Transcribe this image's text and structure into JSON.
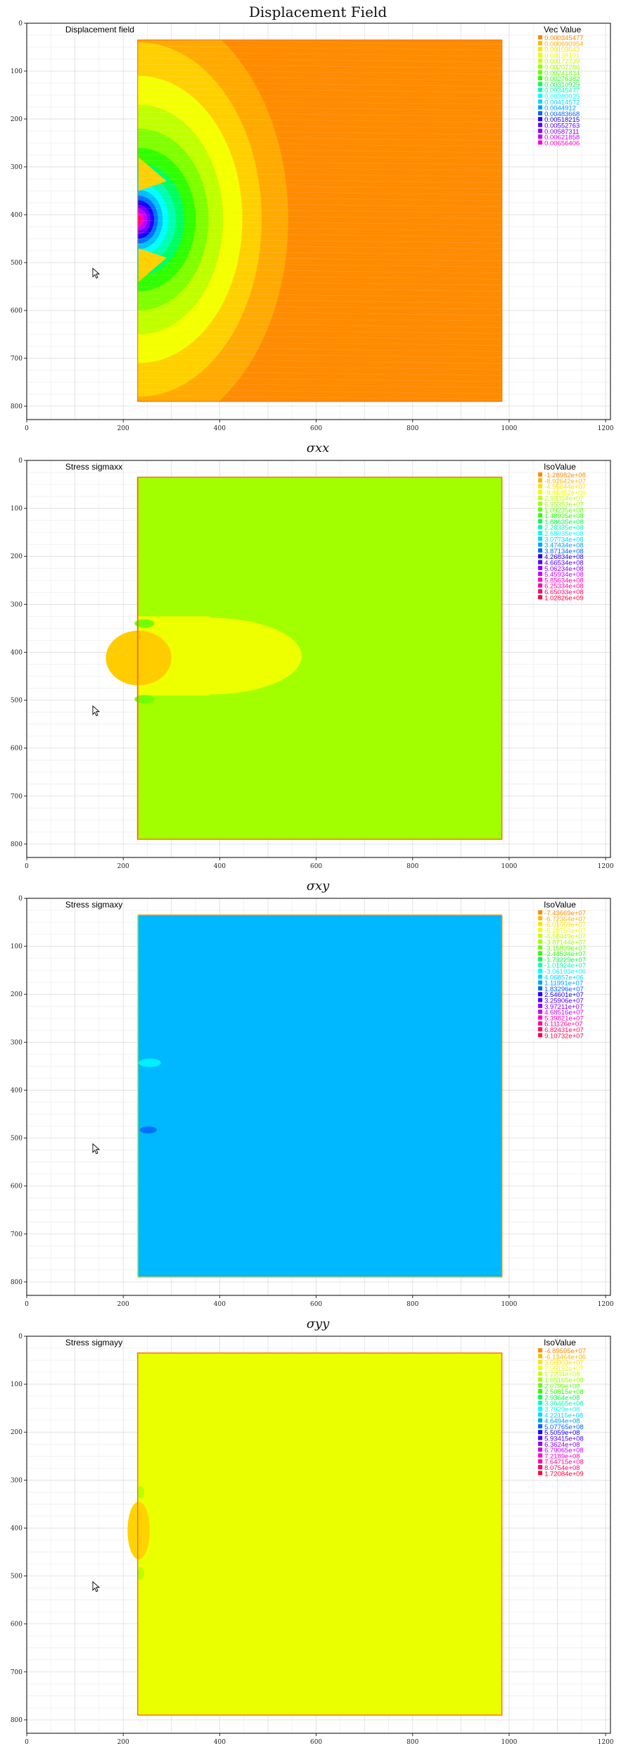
{
  "figure": {
    "title": "Displacement Field"
  },
  "chart_data": [
    {
      "type": "heatmap",
      "title": "Displacement Field",
      "inner_title": "Displacement field",
      "legend_title": "Vec Value",
      "legend_values": [
        "0.000345477",
        "0.000690954",
        "0.00103643",
        "0.00138191",
        "0.00172739",
        "0.00207286",
        "0.00241834",
        "0.00276382",
        "0.00310929",
        "0.00345477",
        "0.00380025",
        "0.00414572",
        "0.0044912",
        "0.00483668",
        "0.00518215",
        "0.00552763",
        "0.00587311",
        "0.00621858",
        "0.00656406"
      ],
      "legend_colors": [
        "#ff8a00",
        "#ffb700",
        "#ffe100",
        "#eeff00",
        "#c8ff00",
        "#9cff00",
        "#63ff00",
        "#2bff00",
        "#00ff4a",
        "#00ffb0",
        "#00ffff",
        "#00d8ff",
        "#00a2ff",
        "#0064ff",
        "#1c00ff",
        "#5200ff",
        "#8c00ff",
        "#c600ff",
        "#ff00c8"
      ],
      "xticks": [
        0,
        200,
        400,
        600,
        800,
        1000,
        1200
      ],
      "yticks": [
        0,
        100,
        200,
        300,
        400,
        500,
        600,
        700,
        800
      ],
      "xlim": [
        0,
        1210
      ],
      "ylim": [
        0,
        828
      ],
      "field": "displacement magnitude",
      "max_location": [
        235,
        410
      ]
    },
    {
      "type": "heatmap",
      "title": "σxx",
      "inner_title": "Stress sigmaxx",
      "legend_title": "IsoValue",
      "legend_values": [
        "-1.28982e+08",
        "-8.92642e+07",
        "-4.95644e+07",
        "-9.86452e+06",
        "2.98354e+07",
        "6.95353e+07",
        "1.09235e+08",
        "1.48935e+08",
        "1.88635e+08",
        "2.28335e+08",
        "2.68035e+08",
        "3.07734e+08",
        "3.47434e+08",
        "3.87134e+08",
        "4.26834e+08",
        "4.66534e+08",
        "5.06234e+08",
        "5.45934e+08",
        "5.85634e+08",
        "6.25334e+08",
        "6.65033e+08",
        "1.02826e+09"
      ],
      "legend_colors": [
        "#ff8a00",
        "#ffb700",
        "#ffe100",
        "#eeff00",
        "#c8ff00",
        "#9cff00",
        "#63ff00",
        "#2bff00",
        "#00ff4a",
        "#00ffb0",
        "#00ffff",
        "#00d8ff",
        "#00a2ff",
        "#0064ff",
        "#1c00ff",
        "#5200ff",
        "#8c00ff",
        "#c600ff",
        "#ff00c8",
        "#ff00a0",
        "#ff0070",
        "#ff0040"
      ],
      "xticks": [
        0,
        200,
        400,
        600,
        800,
        1000,
        1200
      ],
      "yticks": [
        0,
        100,
        200,
        300,
        400,
        500,
        600,
        700,
        800
      ],
      "xlim": [
        0,
        1210
      ],
      "ylim": [
        0,
        828
      ]
    },
    {
      "type": "heatmap",
      "title": "σxy",
      "inner_title": "Stress sigmaxy",
      "legend_title": "IsoValue",
      "legend_values": [
        "-7.43669e+07",
        "-6.72364e+07",
        "-6.01059e+07",
        "-5.29754e+07",
        "-4.58449e+07",
        "-3.87144e+07",
        "-3.15839e+07",
        "-2.44534e+07",
        "-1.73229e+07",
        "-1.01924e+07",
        "-3.06193e+06",
        "4.06857e+06",
        "1.11991e+07",
        "1.83296e+07",
        "2.54601e+07",
        "3.25906e+07",
        "3.97211e+07",
        "4.68516e+07",
        "5.39821e+07",
        "6.11126e+07",
        "6.82431e+07",
        "9.10732e+07"
      ],
      "legend_colors": [
        "#ff8a00",
        "#ffb700",
        "#ffe100",
        "#eeff00",
        "#c8ff00",
        "#9cff00",
        "#63ff00",
        "#2bff00",
        "#00ff4a",
        "#00ffb0",
        "#00ffff",
        "#00d8ff",
        "#00a2ff",
        "#0064ff",
        "#1c00ff",
        "#5200ff",
        "#8c00ff",
        "#c600ff",
        "#ff00c8",
        "#ff00a0",
        "#ff0070",
        "#ff0040"
      ],
      "xticks": [
        0,
        200,
        400,
        600,
        800,
        1000,
        1200
      ],
      "yticks": [
        0,
        100,
        200,
        300,
        400,
        500,
        600,
        700,
        800
      ],
      "xlim": [
        0,
        1210
      ],
      "ylim": [
        0,
        828
      ]
    },
    {
      "type": "heatmap",
      "title": "σyy",
      "inner_title": "Stress sigmayy",
      "legend_title": "IsoValue",
      "legend_values": [
        "-4.89595e+07",
        "-6.13464e+06",
        "3.66903e+07",
        "7.95152e+07",
        "1.2234e+08",
        "1.65165e+08",
        "2.0799e+08",
        "2.50815e+08",
        "2.9364e+08",
        "3.36465e+08",
        "3.7929e+08",
        "4.22115e+08",
        "4.6494e+08",
        "5.07765e+08",
        "5.5059e+08",
        "5.93415e+08",
        "6.3624e+08",
        "6.79065e+08",
        "7.2189e+08",
        "7.64715e+08",
        "8.0754e+08",
        "1.72084e+09"
      ],
      "legend_colors": [
        "#ff8a00",
        "#ffb700",
        "#ffe100",
        "#eeff00",
        "#c8ff00",
        "#9cff00",
        "#63ff00",
        "#2bff00",
        "#00ff4a",
        "#00ffb0",
        "#00ffff",
        "#00d8ff",
        "#00a2ff",
        "#0064ff",
        "#1c00ff",
        "#5200ff",
        "#8c00ff",
        "#c600ff",
        "#ff00c8",
        "#ff00a0",
        "#ff0070",
        "#ff0040"
      ],
      "xticks": [
        0,
        200,
        400,
        600,
        800,
        1000,
        1200
      ],
      "yticks": [
        0,
        100,
        200,
        300,
        400,
        500,
        600,
        700,
        800
      ],
      "xlim": [
        0,
        1210
      ],
      "ylim": [
        0,
        828
      ]
    }
  ]
}
